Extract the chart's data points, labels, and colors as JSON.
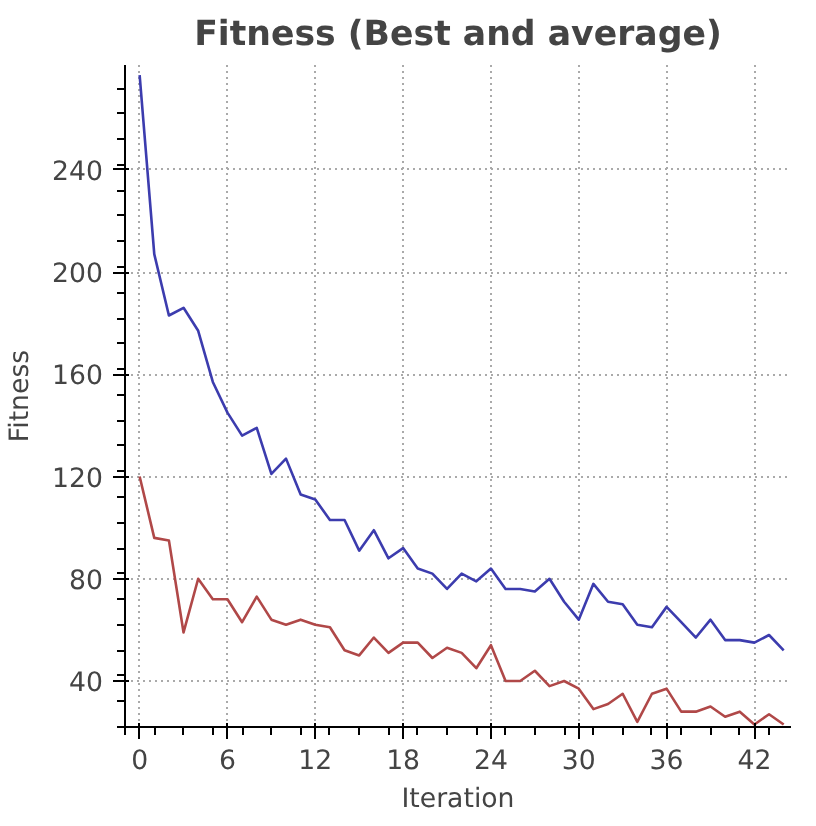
{
  "chart_data": {
    "type": "line",
    "title": "Fitness (Best and average)",
    "xlabel": "Iteration",
    "ylabel": "Fitness",
    "x": [
      0,
      1,
      2,
      3,
      4,
      5,
      6,
      7,
      8,
      9,
      10,
      11,
      12,
      13,
      14,
      15,
      16,
      17,
      18,
      19,
      20,
      21,
      22,
      23,
      24,
      25,
      26,
      27,
      28,
      29,
      30,
      31,
      32,
      33,
      34,
      35,
      36,
      37,
      38,
      39,
      40,
      41,
      42,
      43,
      44
    ],
    "series": [
      {
        "color": "#3c3cae",
        "values": [
          277,
          207,
          183,
          186,
          177,
          157,
          145,
          136,
          139,
          121,
          127,
          113,
          111,
          103,
          103,
          91,
          99,
          88,
          92,
          84,
          82,
          76,
          82,
          79,
          84,
          76,
          76,
          75,
          80,
          71,
          64,
          78,
          71,
          70,
          62,
          61,
          69,
          63,
          57,
          64,
          56,
          56,
          55,
          58,
          52
        ]
      },
      {
        "color": "#b04848",
        "values": [
          120,
          96,
          95,
          59,
          80,
          72,
          72,
          63,
          73,
          64,
          62,
          64,
          62,
          61,
          52,
          50,
          57,
          51,
          55,
          55,
          49,
          53,
          51,
          45,
          54,
          40,
          40,
          44,
          38,
          40,
          37,
          29,
          31,
          35,
          24,
          35,
          37,
          28,
          28,
          30,
          26,
          28,
          23,
          27,
          23
        ]
      }
    ],
    "xlim": [
      -1,
      44.5
    ],
    "ylim": [
      22,
      281
    ],
    "xticks": [
      0,
      6,
      12,
      18,
      24,
      30,
      36,
      42
    ],
    "yticks": [
      40,
      80,
      120,
      160,
      200,
      240
    ],
    "grid": true,
    "marker": "none",
    "line_style": "solid"
  }
}
